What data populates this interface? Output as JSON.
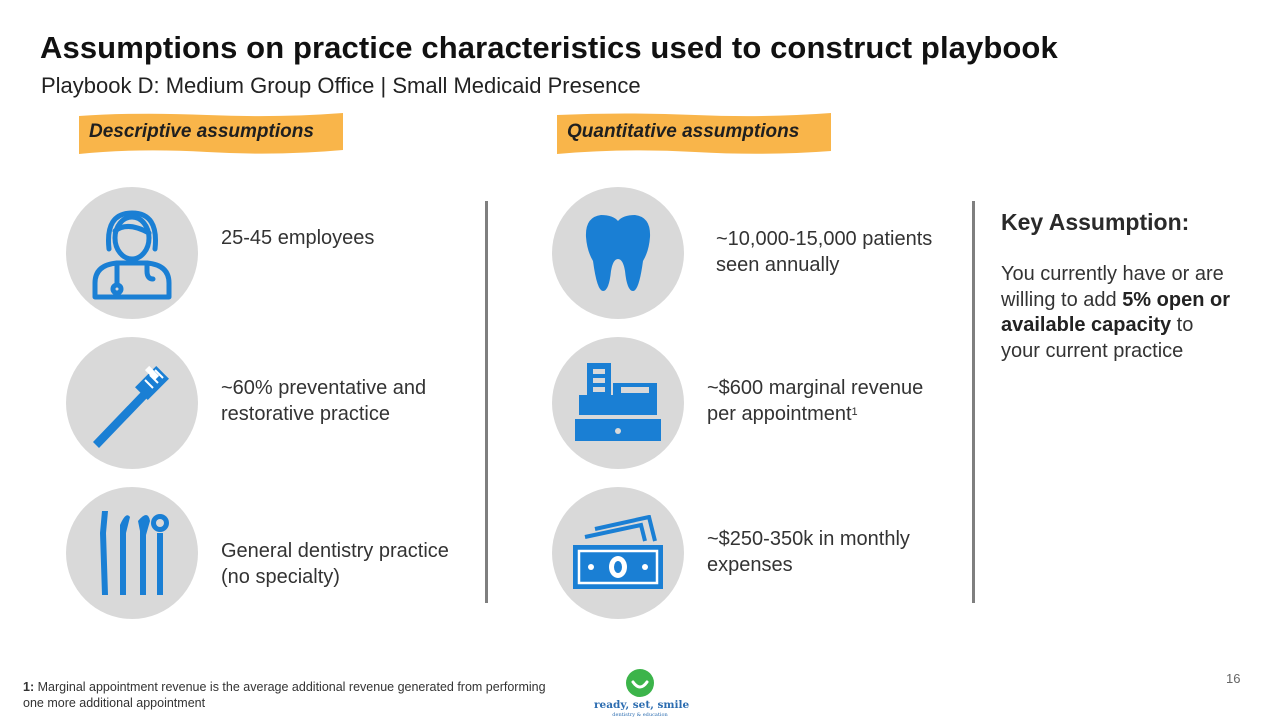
{
  "header": {
    "title": "Assumptions on practice characteristics used to construct playbook",
    "subtitle": "Playbook D: Medium Group Office | Small Medicaid Presence"
  },
  "sections": {
    "descriptive_label": "Descriptive assumptions",
    "quantitative_label": "Quantitative assumptions"
  },
  "descriptive": [
    {
      "icon": "dentist-icon",
      "line1": "25-45 employees",
      "line2": ""
    },
    {
      "icon": "toothbrush-icon",
      "line1": "~60% preventative and",
      "line2": "restorative practice"
    },
    {
      "icon": "dental-tools-icon",
      "line1": "General dentistry practice",
      "line2": "(no specialty)"
    }
  ],
  "quantitative": [
    {
      "icon": "tooth-icon",
      "line1": "~10,000-15,000 patients",
      "line2": "seen annually",
      "sup": ""
    },
    {
      "icon": "cash-register-icon",
      "line1": "~$600 marginal revenue",
      "line2": "per appointment",
      "sup": "1"
    },
    {
      "icon": "money-bills-icon",
      "line1": "~$250-350k in monthly",
      "line2": "expenses",
      "sup": ""
    }
  ],
  "key_assumption": {
    "title": "Key Assumption:",
    "text_before": "You currently have or are willing to add",
    "bold": "5% open or available capacity",
    "text_after": "to your current practice"
  },
  "footnote": {
    "marker": "1:",
    "text": "Marginal appointment revenue is the average additional revenue generated from performing one more additional appointment"
  },
  "logo": {
    "name": "ready, set, smile",
    "tagline": "dentistry & education"
  },
  "page_number": "16",
  "colors": {
    "icon_blue": "#1a7fd4",
    "circle_gray": "#d9d9d9",
    "banner_orange": "#f9b54a",
    "divider_gray": "#7f7f7f",
    "logo_green": "#3cb44a"
  }
}
